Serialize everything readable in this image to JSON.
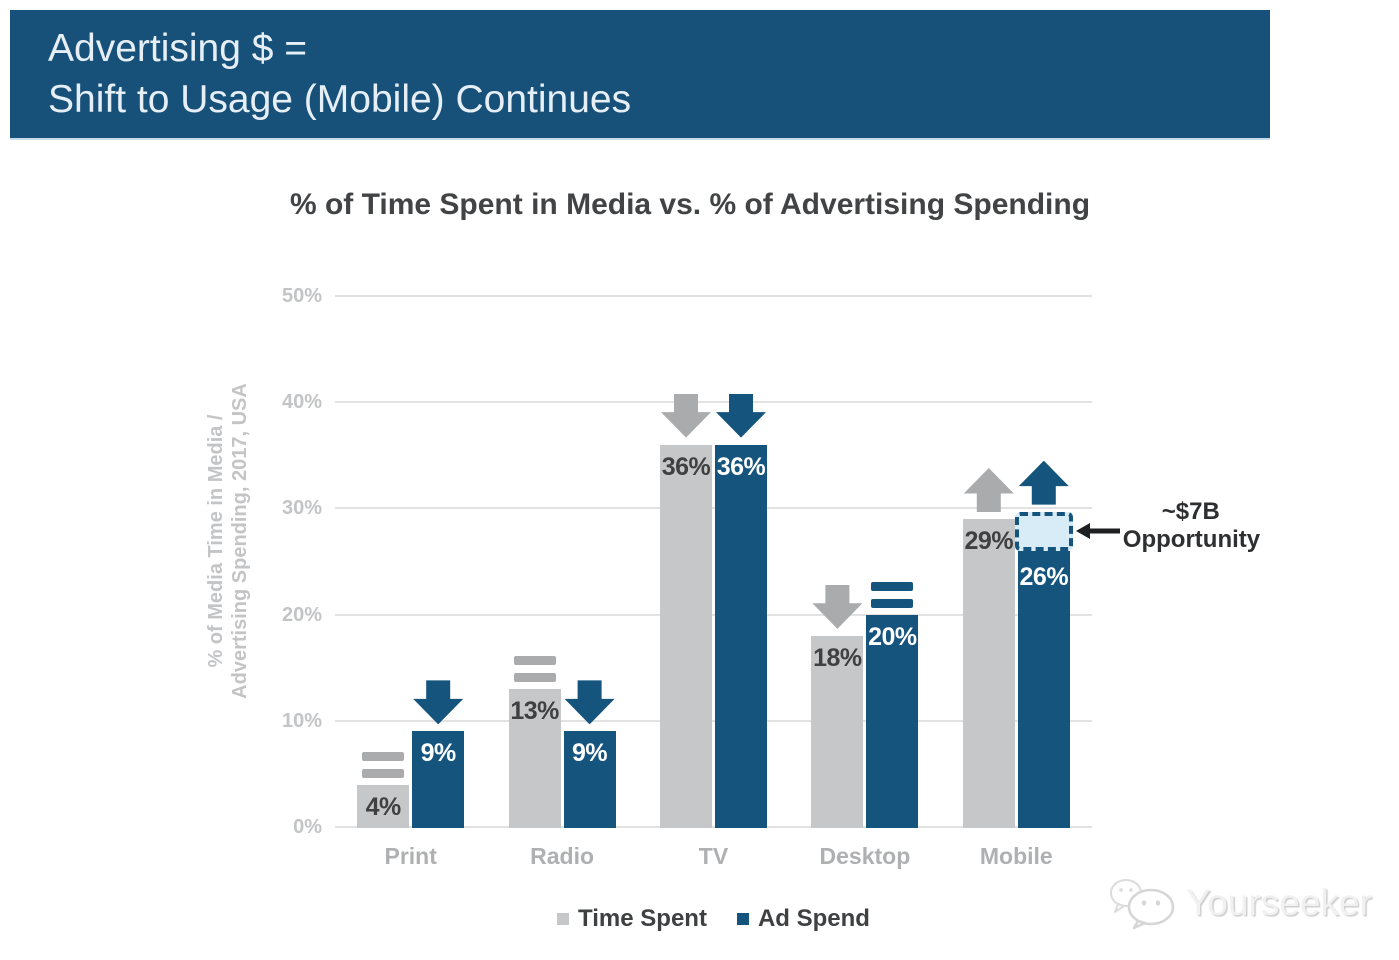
{
  "header": {
    "line1": "Advertising $ =",
    "line2": "Shift to Usage (Mobile) Continues"
  },
  "chart_data": {
    "type": "bar",
    "title": "% of Time Spent in Media vs. % of Advertising Spending",
    "ylabel": [
      "% of Media Time in Media /",
      "Advertising Spending, 2017, USA"
    ],
    "categories": [
      "Print",
      "Radio",
      "TV",
      "Desktop",
      "Mobile"
    ],
    "y_ticks": [
      "50%",
      "40%",
      "30%",
      "20%",
      "10%",
      "0%"
    ],
    "ylim": [
      0,
      50
    ],
    "grid": true,
    "legend_position": "bottom",
    "series": [
      {
        "name": "Time Spent",
        "color": "#c6c7c8",
        "values": [
          4,
          13,
          36,
          18,
          29
        ],
        "labels": [
          "4%",
          "13%",
          "36%",
          "18%",
          "29%"
        ],
        "trend": [
          "flat",
          "flat",
          "down",
          "down",
          "up"
        ],
        "trend_color": "#a9abac"
      },
      {
        "name": "Ad Spend",
        "color": "#15547d",
        "values": [
          9,
          9,
          36,
          20,
          26
        ],
        "labels": [
          "9%",
          "9%",
          "36%",
          "20%",
          "26%"
        ],
        "trend": [
          "down",
          "down",
          "down",
          "flat",
          "up"
        ],
        "trend_color": "#15547d"
      }
    ],
    "annotation": {
      "line1": "~$7B",
      "line2": "Opportunity",
      "target_category": "Mobile",
      "target_series": "Ad Spend",
      "box_from": 26,
      "box_to": 29.7,
      "box_fill": "#d8ecf8",
      "box_border": "#15547d",
      "arrow_color": "#1e1f20"
    }
  },
  "legend": {
    "items": [
      {
        "label": "Time Spent",
        "color": "#c6c7c8"
      },
      {
        "label": "Ad Spend",
        "color": "#15547d"
      }
    ]
  },
  "watermark": {
    "text": "Yourseeker"
  },
  "colors": {
    "header_bg": "#175179",
    "header_text": "#e6eef6",
    "title_text": "#414344",
    "gridline": "#e2e2e2",
    "tick_text": "#c3c4c5",
    "category_text": "#aeb0b1",
    "value_dark": "#3e4041",
    "value_white": "#ffffff"
  }
}
